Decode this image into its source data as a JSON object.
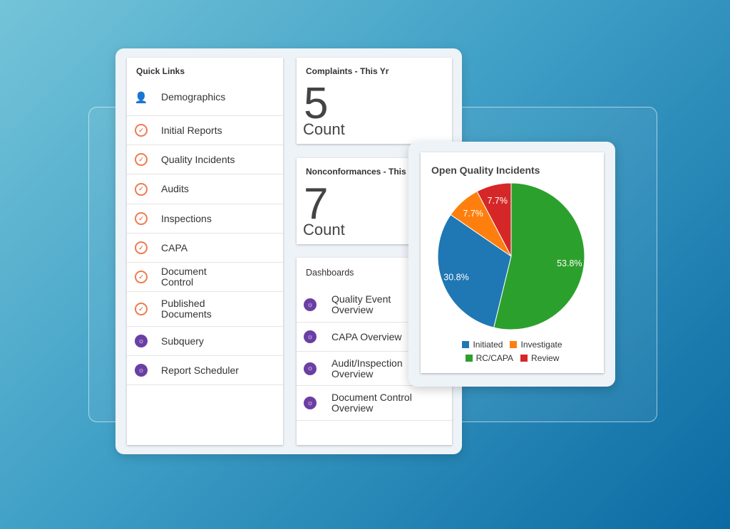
{
  "quick_links": {
    "title": "Quick Links",
    "items": [
      {
        "label": "Demographics",
        "icon": "person-icon"
      },
      {
        "label": "Initial Reports",
        "icon": "target-check-icon"
      },
      {
        "label": "Quality Incidents",
        "icon": "target-check-icon"
      },
      {
        "label": "Audits",
        "icon": "target-check-icon"
      },
      {
        "label": "Inspections",
        "icon": "target-check-icon"
      },
      {
        "label": "CAPA",
        "icon": "target-check-icon"
      },
      {
        "label": "Document Control",
        "icon": "target-check-icon"
      },
      {
        "label": "Published Documents",
        "icon": "target-check-icon"
      },
      {
        "label": "Subquery",
        "icon": "lightbulb-icon"
      },
      {
        "label": "Report Scheduler",
        "icon": "lightbulb-icon"
      }
    ]
  },
  "complaints": {
    "title": "Complaints - This Yr",
    "value": "5",
    "unit": "Count"
  },
  "nonconformances": {
    "title": "Nonconformances - This Yr",
    "value": "7",
    "unit": "Count"
  },
  "dashboards": {
    "title": "Dashboards",
    "items": [
      {
        "label": "Quality Event Overview"
      },
      {
        "label": "CAPA Overview"
      },
      {
        "label": "Audit/Inspection Overview"
      },
      {
        "label": "Document Control Overview"
      }
    ]
  },
  "chart_data": {
    "type": "pie",
    "title": "Open Quality Incidents",
    "legend": "bottom",
    "slices": [
      {
        "name": "RC/CAPA",
        "value": 53.8,
        "label": "53.8%",
        "color": "#2ca02c"
      },
      {
        "name": "Initiated",
        "value": 30.8,
        "label": "30.8%",
        "color": "#1f77b4"
      },
      {
        "name": "Investigate",
        "value": 7.7,
        "label": "7.7%",
        "color": "#ff7f0e"
      },
      {
        "name": "Review",
        "value": 7.7,
        "label": "7.7%",
        "color": "#d62728"
      }
    ],
    "legend_order": [
      "Initiated",
      "Investigate",
      "RC/CAPA",
      "Review"
    ]
  }
}
